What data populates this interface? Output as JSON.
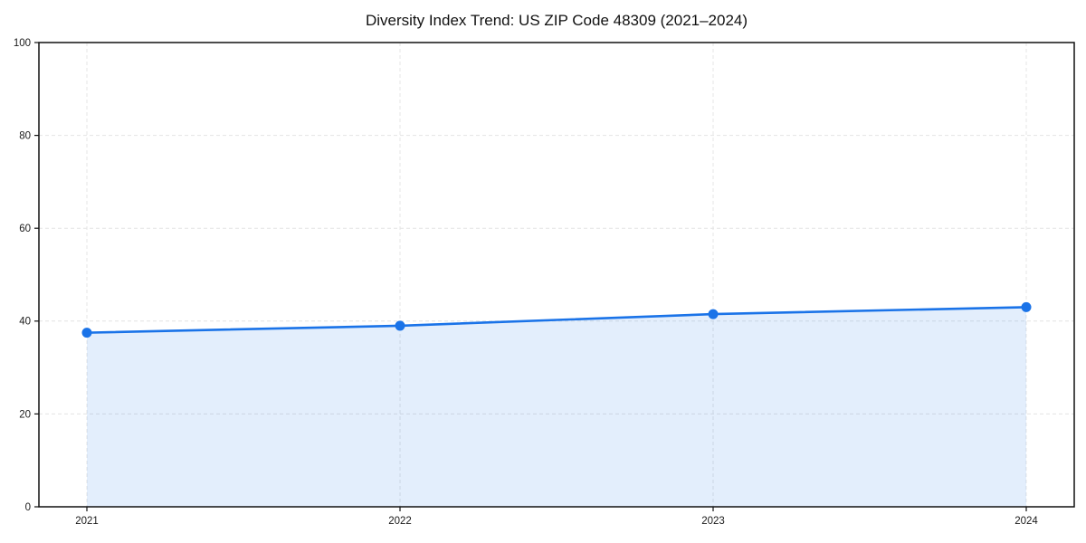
{
  "chart_data": {
    "type": "area",
    "title": "Diversity Index Trend: US ZIP Code 48309 (2021–2024)",
    "categories": [
      "2021",
      "2022",
      "2023",
      "2024"
    ],
    "series": [
      {
        "name": "Diversity Index",
        "values": [
          37.5,
          39,
          41.5,
          43
        ]
      }
    ],
    "xlabel": "",
    "ylabel": "",
    "ylim": [
      0,
      100
    ],
    "yticks": [
      0,
      20,
      40,
      60,
      80,
      100
    ],
    "grid": "dashed, both axes",
    "legend": "none",
    "colors": {
      "line": "#1a73e8",
      "marker": "#1a73e8",
      "fill": "#1a73e8",
      "fill_opacity": 0.12,
      "grid": "#e4e4e4",
      "spine": "#111111",
      "text": "#1a1a1a",
      "background": "#ffffff"
    }
  }
}
